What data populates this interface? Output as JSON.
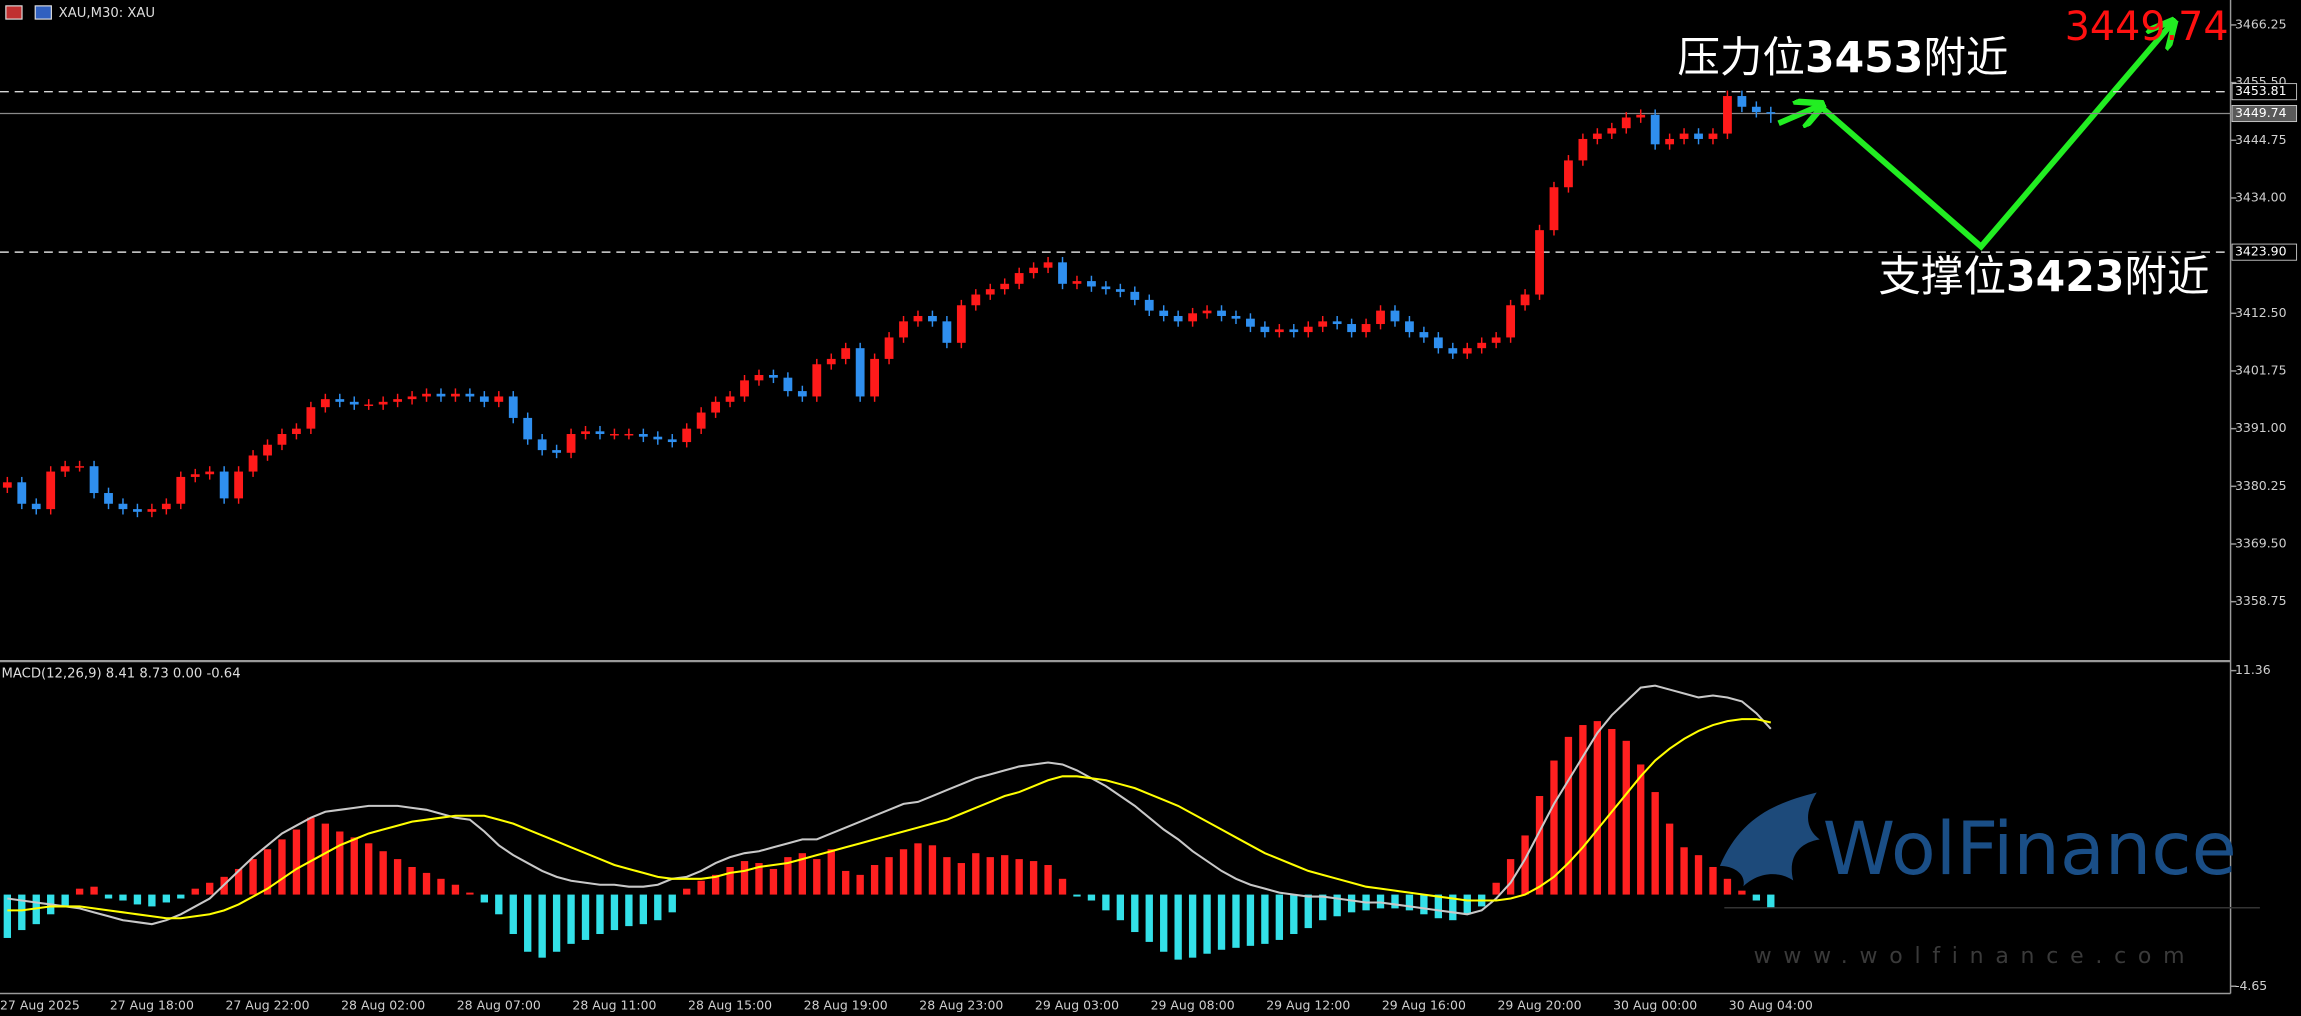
{
  "chart_data": [
    {
      "type": "candlestick",
      "title": "XAU,M30: XAU",
      "categories": [
        "27 Aug 2025",
        null,
        null,
        null,
        null,
        null,
        null,
        null,
        null,
        null,
        "27 Aug 18:00",
        null,
        null,
        null,
        null,
        null,
        null,
        null,
        "27 Aug 22:00",
        null,
        null,
        null,
        null,
        null,
        null,
        null,
        "28 Aug 02:00",
        null,
        null,
        null,
        null,
        null,
        null,
        null,
        "28 Aug 07:00",
        null,
        null,
        null,
        null,
        null,
        null,
        null,
        "28 Aug 11:00",
        null,
        null,
        null,
        null,
        null,
        null,
        null,
        "28 Aug 15:00",
        null,
        null,
        null,
        null,
        null,
        null,
        null,
        "28 Aug 19:00",
        null,
        null,
        null,
        null,
        null,
        null,
        null,
        "28 Aug 23:00",
        null,
        null,
        null,
        null,
        null,
        null,
        null,
        "29 Aug 03:00",
        null,
        null,
        null,
        null,
        null,
        null,
        null,
        "29 Aug 08:00",
        null,
        null,
        null,
        null,
        null,
        null,
        null,
        "29 Aug 12:00",
        null,
        null,
        null,
        null,
        null,
        null,
        null,
        "29 Aug 16:00",
        null,
        null,
        null,
        null,
        null,
        null,
        null,
        "29 Aug 20:00",
        null,
        null,
        null,
        null,
        null,
        null,
        null,
        "30 Aug 00:00",
        null,
        null,
        null,
        null,
        null,
        null,
        null,
        "30 Aug 04:00"
      ],
      "open": [
        3380,
        3381,
        3377,
        3376,
        3383,
        3384,
        3384,
        3379,
        3377,
        3376,
        3375.5,
        3376,
        3377,
        3382,
        3382.5,
        3383,
        3378,
        3383,
        3386,
        3388,
        3390,
        3391,
        3395,
        3396.5,
        3396,
        3395.5,
        3395.5,
        3396,
        3396.5,
        3397,
        3397.5,
        3397,
        3397.5,
        3397,
        3396,
        3397,
        3393,
        3389,
        3387,
        3386.5,
        3390,
        3390.5,
        3390,
        3390,
        3390,
        3389.5,
        3389,
        3388.5,
        3391,
        3394,
        3396,
        3397,
        3400,
        3401,
        3400.5,
        3398,
        3397,
        3403,
        3404,
        3406,
        3397,
        3404,
        3408,
        3411,
        3412,
        3411,
        3407,
        3414,
        3416,
        3417,
        3418,
        3420,
        3421,
        3422,
        3418,
        3418.5,
        3417.5,
        3417,
        3416.5,
        3415,
        3413,
        3412,
        3411,
        3412.5,
        3413,
        3412,
        3411.5,
        3410,
        3409,
        3409.5,
        3409,
        3410,
        3411,
        3410.5,
        3409,
        3410.5,
        3413,
        3411,
        3409,
        3408,
        3406,
        3405,
        3406,
        3407,
        3408,
        3414,
        3416,
        3428,
        3436,
        3441,
        3445,
        3446,
        3447,
        3449,
        3449.5,
        3444,
        3445,
        3446,
        3445,
        3446,
        3453,
        3451,
        3450
      ],
      "high": [
        3382,
        3382,
        3378,
        3384,
        3385,
        3385,
        3385,
        3380,
        3378,
        3377,
        3377,
        3378,
        3383,
        3383.5,
        3384,
        3384,
        3384,
        3387,
        3389,
        3391,
        3392,
        3396,
        3397.5,
        3397.5,
        3397,
        3396.5,
        3397,
        3397.5,
        3398,
        3398.5,
        3398.5,
        3398.5,
        3398.5,
        3398,
        3398,
        3398,
        3394,
        3390,
        3388,
        3391,
        3391.5,
        3391.5,
        3391,
        3391,
        3391,
        3390.5,
        3390,
        3392,
        3395,
        3397,
        3398,
        3401,
        3402,
        3402,
        3401.5,
        3399,
        3404,
        3405,
        3407,
        3407,
        3405,
        3409,
        3412,
        3413,
        3413,
        3412,
        3415,
        3417,
        3418,
        3419,
        3421,
        3422,
        3423,
        3423,
        3419.5,
        3419.5,
        3418.5,
        3418,
        3417.5,
        3416,
        3414,
        3413,
        3413.5,
        3414,
        3414,
        3413,
        3412.5,
        3411,
        3410.5,
        3410.5,
        3411,
        3412,
        3412,
        3411.5,
        3411.5,
        3414,
        3414,
        3412,
        3410,
        3409,
        3407,
        3407,
        3408,
        3409,
        3415,
        3417,
        3429,
        3437,
        3442,
        3446,
        3447,
        3448,
        3450,
        3450.5,
        3450.5,
        3446,
        3447,
        3447,
        3447,
        3454,
        3454,
        3452,
        3451
      ],
      "low": [
        3379,
        3376,
        3375,
        3375,
        3382,
        3383,
        3378,
        3376,
        3375,
        3374.5,
        3374.5,
        3375,
        3376,
        3381,
        3381.5,
        3377,
        3377,
        3382,
        3385,
        3387,
        3389,
        3390,
        3394,
        3395,
        3394.5,
        3394.5,
        3394.5,
        3395,
        3395.5,
        3396,
        3396,
        3396,
        3396,
        3395,
        3395,
        3392,
        3388,
        3386,
        3385.5,
        3385.5,
        3389,
        3389,
        3389,
        3389,
        3388.5,
        3388,
        3387.5,
        3387.5,
        3390,
        3393,
        3395,
        3396,
        3399,
        3399.5,
        3397,
        3396,
        3396,
        3402,
        3403,
        3396,
        3396,
        3403,
        3407,
        3410,
        3410,
        3406,
        3406,
        3413,
        3415,
        3416,
        3417,
        3419,
        3420,
        3417,
        3417,
        3416.5,
        3416,
        3415.5,
        3414,
        3412,
        3411,
        3410,
        3410,
        3411.5,
        3411,
        3410.5,
        3409,
        3408,
        3408,
        3408,
        3408,
        3409,
        3409.5,
        3408,
        3408,
        3409.5,
        3410,
        3408,
        3407,
        3405,
        3404,
        3404,
        3405,
        3406,
        3407,
        3413,
        3415,
        3427,
        3435,
        3440,
        3444,
        3445,
        3446,
        3448,
        3443,
        3443,
        3444,
        3444,
        3444,
        3445,
        3450,
        3449,
        3448
      ],
      "close": [
        3381,
        3377,
        3376,
        3383,
        3384,
        3384,
        3379,
        3377,
        3376,
        3375.5,
        3376,
        3377,
        3382,
        3382.5,
        3383,
        3378,
        3383,
        3386,
        3388,
        3390,
        3391,
        3395,
        3396.5,
        3396,
        3395.5,
        3395.5,
        3396,
        3396.5,
        3397,
        3397.5,
        3397,
        3397.5,
        3397,
        3396,
        3397,
        3393,
        3389,
        3387,
        3386.5,
        3390,
        3390.5,
        3390,
        3390,
        3390,
        3389.5,
        3389,
        3388.5,
        3391,
        3394,
        3396,
        3397,
        3400,
        3401,
        3400.5,
        3398,
        3397,
        3403,
        3404,
        3406,
        3397,
        3404,
        3408,
        3411,
        3412,
        3411,
        3407,
        3414,
        3416,
        3417,
        3418,
        3420,
        3421,
        3422,
        3418,
        3418.5,
        3417.5,
        3417,
        3416.5,
        3415,
        3413,
        3412,
        3411,
        3412.5,
        3413,
        3412,
        3411.5,
        3410,
        3409,
        3409.5,
        3409,
        3410,
        3411,
        3410.5,
        3409,
        3410.5,
        3413,
        3411,
        3409,
        3408,
        3406,
        3405,
        3406,
        3407,
        3408,
        3414,
        3416,
        3428,
        3436,
        3441,
        3445,
        3446,
        3447,
        3449,
        3449.5,
        3444,
        3445,
        3446,
        3445,
        3446,
        3453,
        3451,
        3450,
        3449.74
      ],
      "up_color": "#ff1a1a",
      "down_color": "#2f8fef",
      "ylim": [
        3347.8,
        3470.9
      ],
      "yticks": [
        3466.25,
        {
          "value": 3455.5,
          "label": "3455.50"
        },
        3444.75,
        {
          "value": 3434,
          "label": "3434.00"
        },
        {
          "value": 3412.5,
          "label": "3412.50"
        },
        3401.75,
        {
          "value": 3391,
          "label": "3391.00"
        },
        3380.25,
        {
          "value": 3369.5,
          "label": "3369.50"
        },
        3358.75
      ],
      "price_lines": [
        3453.81,
        3449.74,
        {
          "value": 3423.9,
          "label": "3423.90"
        }
      ],
      "price_line_styles": [
        "dashed",
        "solid",
        "dashed"
      ],
      "annotations": [
        {
          "parts": [
            "压力位",
            "3453",
            "附近"
          ]
        },
        {
          "parts": [
            "支撑位",
            "3423",
            "附近"
          ]
        }
      ],
      "last_price_label": 3449.74
    },
    {
      "type": "macd",
      "title": "MACD(12,26,9) 8.41 8.73 0.00 -0.64",
      "histogram": [
        -2.2,
        -1.8,
        -1.5,
        -1.0,
        -0.6,
        0.3,
        0.4,
        -0.2,
        -0.3,
        -0.5,
        -0.6,
        -0.4,
        -0.2,
        0.3,
        0.6,
        0.9,
        1.3,
        1.8,
        2.3,
        2.8,
        3.3,
        3.9,
        3.6,
        3.2,
        2.9,
        2.6,
        2.2,
        1.8,
        1.4,
        1.1,
        0.8,
        0.5,
        0.1,
        -0.4,
        -1.0,
        -2.0,
        -2.9,
        -3.2,
        -2.9,
        -2.5,
        -2.3,
        -2.0,
        -1.8,
        -1.6,
        -1.5,
        -1.3,
        -0.9,
        0.3,
        0.7,
        1.0,
        1.4,
        1.7,
        1.6,
        1.3,
        1.9,
        2.1,
        1.8,
        2.3,
        1.2,
        1.0,
        1.5,
        1.9,
        2.3,
        2.6,
        2.5,
        1.9,
        1.6,
        2.1,
        1.9,
        2.0,
        1.8,
        1.7,
        1.5,
        0.8,
        -0.1,
        -0.3,
        -0.8,
        -1.3,
        -1.9,
        -2.4,
        -2.9,
        -3.3,
        -3.2,
        -3.0,
        -2.8,
        -2.7,
        -2.6,
        -2.5,
        -2.3,
        -2.0,
        -1.7,
        -1.3,
        -1.1,
        -0.9,
        -0.8,
        -0.7,
        -0.7,
        -0.8,
        -1.0,
        -1.2,
        -1.3,
        -1.0,
        -0.6,
        0.6,
        1.8,
        3.0,
        5.0,
        6.8,
        8.0,
        8.6,
        8.8,
        8.4,
        7.8,
        6.6,
        5.2,
        3.6,
        2.4,
        2.0,
        1.4,
        0.8,
        0.2,
        -0.3,
        -0.64
      ],
      "pos_color": "#ff2020",
      "neg_color": "#33e0e8",
      "series": [
        {
          "color": "#c8c8c8",
          "values": [
            -0.2,
            -0.3,
            -0.4,
            -0.5,
            -0.6,
            -0.7,
            -0.9,
            -1.1,
            -1.3,
            -1.4,
            -1.5,
            -1.3,
            -1.0,
            -0.6,
            -0.2,
            0.5,
            1.2,
            1.9,
            2.5,
            3.1,
            3.5,
            3.9,
            4.2,
            4.3,
            4.4,
            4.5,
            4.5,
            4.5,
            4.4,
            4.3,
            4.1,
            3.9,
            3.8,
            3.2,
            2.5,
            2.0,
            1.6,
            1.2,
            0.9,
            0.7,
            0.6,
            0.5,
            0.5,
            0.4,
            0.4,
            0.5,
            0.8,
            0.9,
            1.2,
            1.6,
            1.9,
            2.1,
            2.2,
            2.4,
            2.6,
            2.8,
            2.8,
            3.1,
            3.4,
            3.7,
            4.0,
            4.3,
            4.6,
            4.7,
            5.0,
            5.3,
            5.6,
            5.9,
            6.1,
            6.3,
            6.5,
            6.6,
            6.7,
            6.6,
            6.3,
            5.9,
            5.5,
            5.0,
            4.5,
            3.9,
            3.3,
            2.8,
            2.2,
            1.7,
            1.2,
            0.8,
            0.5,
            0.3,
            0.1,
            0.0,
            -0.1,
            -0.1,
            -0.2,
            -0.3,
            -0.4,
            -0.4,
            -0.5,
            -0.6,
            -0.7,
            -0.8,
            -0.9,
            -1.0,
            -0.8,
            -0.2,
            0.6,
            1.8,
            3.2,
            4.6,
            5.8,
            7.0,
            8.2,
            9.1,
            9.8,
            10.5,
            10.6,
            10.4,
            10.2,
            10.0,
            10.1,
            10.0,
            9.8,
            9.2,
            8.41
          ]
        },
        {
          "color": "#ffff00",
          "values": [
            -0.8,
            -0.8,
            -0.7,
            -0.6,
            -0.6,
            -0.6,
            -0.7,
            -0.8,
            -0.9,
            -1.0,
            -1.1,
            -1.2,
            -1.2,
            -1.1,
            -1.0,
            -0.8,
            -0.5,
            -0.1,
            0.3,
            0.8,
            1.3,
            1.7,
            2.1,
            2.5,
            2.8,
            3.1,
            3.3,
            3.5,
            3.7,
            3.8,
            3.9,
            4.0,
            4.0,
            4.0,
            3.8,
            3.6,
            3.3,
            3.0,
            2.7,
            2.4,
            2.1,
            1.8,
            1.5,
            1.3,
            1.1,
            0.9,
            0.8,
            0.8,
            0.8,
            0.9,
            1.1,
            1.2,
            1.4,
            1.5,
            1.6,
            1.8,
            2.0,
            2.2,
            2.4,
            2.6,
            2.8,
            3.0,
            3.2,
            3.4,
            3.6,
            3.8,
            4.1,
            4.4,
            4.7,
            5.0,
            5.2,
            5.5,
            5.8,
            6.0,
            6.0,
            5.9,
            5.8,
            5.6,
            5.4,
            5.1,
            4.8,
            4.5,
            4.1,
            3.7,
            3.3,
            2.9,
            2.5,
            2.1,
            1.8,
            1.5,
            1.2,
            1.0,
            0.8,
            0.6,
            0.4,
            0.3,
            0.2,
            0.1,
            0.0,
            -0.1,
            -0.2,
            -0.3,
            -0.3,
            -0.3,
            -0.2,
            0.0,
            0.4,
            0.9,
            1.6,
            2.4,
            3.3,
            4.2,
            5.1,
            6.0,
            6.8,
            7.4,
            7.9,
            8.3,
            8.6,
            8.8,
            8.9,
            8.9,
            8.73
          ]
        }
      ],
      "ylim": [
        -5.02,
        11.73
      ],
      "yticks": [
        11.36,
        -4.65
      ]
    }
  ],
  "watermark": {
    "brand": "WolFinance",
    "url": "www.wolfinance.com"
  }
}
